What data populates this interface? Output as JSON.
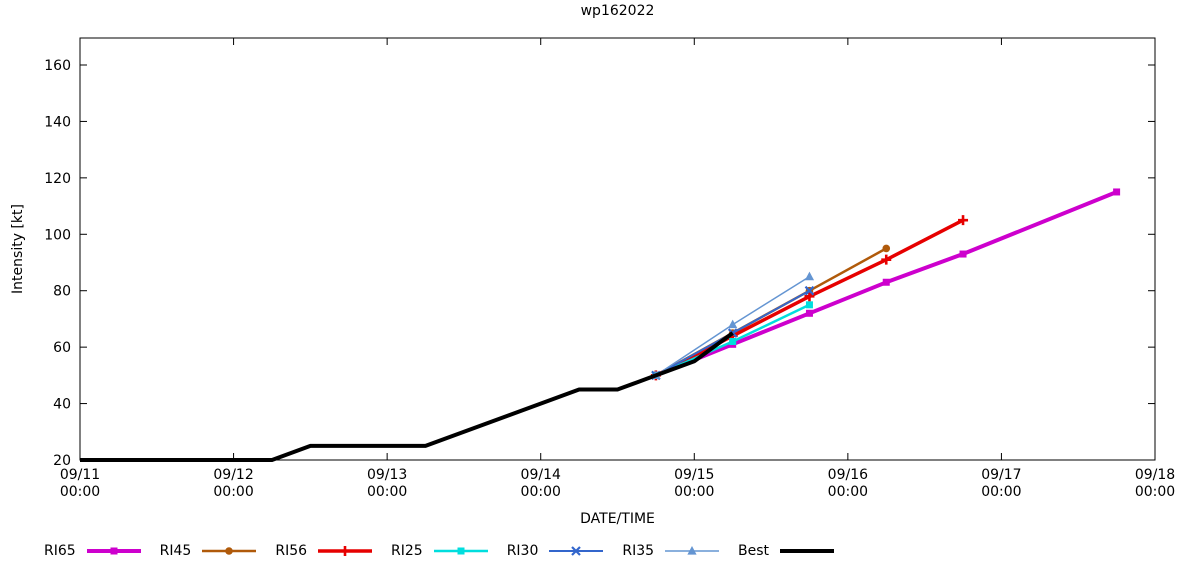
{
  "page": {
    "background": "#ffffff"
  },
  "chart_data": {
    "type": "line",
    "title": "wp162022",
    "xlabel": "DATE/TIME",
    "ylabel": "Intensity [kt]",
    "xlim_days": [
      11,
      18
    ],
    "ylim": [
      20,
      160
    ],
    "grid": false,
    "legend_position": "bottom",
    "x_ticks": [
      {
        "date": "09/11",
        "time": "00:00"
      },
      {
        "date": "09/12",
        "time": "00:00"
      },
      {
        "date": "09/13",
        "time": "00:00"
      },
      {
        "date": "09/14",
        "time": "00:00"
      },
      {
        "date": "09/15",
        "time": "00:00"
      },
      {
        "date": "09/16",
        "time": "00:00"
      },
      {
        "date": "09/17",
        "time": "00:00"
      },
      {
        "date": "09/18",
        "time": "00:00"
      }
    ],
    "y_ticks": [
      20,
      40,
      60,
      80,
      100,
      120,
      140,
      160
    ],
    "series": [
      {
        "name": "RI65",
        "color": "#cd00cd",
        "marker": "square",
        "width": 4,
        "points": [
          [
            "09/14 18:00",
            50
          ],
          [
            "09/15 06:00",
            61
          ],
          [
            "09/15 18:00",
            72
          ],
          [
            "09/16 06:00",
            83
          ],
          [
            "09/16 18:00",
            93
          ],
          [
            "09/17 18:00",
            115
          ]
        ]
      },
      {
        "name": "RI45",
        "color": "#b05a0a",
        "marker": "circle",
        "width": 2.5,
        "points": [
          [
            "09/14 18:00",
            50
          ],
          [
            "09/15 06:00",
            65
          ],
          [
            "09/15 18:00",
            80
          ],
          [
            "09/16 06:00",
            95
          ]
        ]
      },
      {
        "name": "RI56",
        "color": "#e60000",
        "marker": "plus",
        "width": 3.5,
        "points": [
          [
            "09/14 18:00",
            50
          ],
          [
            "09/15 06:00",
            64
          ],
          [
            "09/15 18:00",
            78
          ],
          [
            "09/16 06:00",
            91
          ],
          [
            "09/16 18:00",
            105
          ]
        ]
      },
      {
        "name": "RI25",
        "color": "#00dede",
        "marker": "square",
        "width": 2.5,
        "points": [
          [
            "09/14 18:00",
            50
          ],
          [
            "09/15 06:00",
            62
          ],
          [
            "09/15 18:00",
            75
          ]
        ]
      },
      {
        "name": "RI30",
        "color": "#3366cc",
        "marker": "cross",
        "width": 2,
        "points": [
          [
            "09/14 18:00",
            50
          ],
          [
            "09/15 06:00",
            65
          ],
          [
            "09/15 18:00",
            80
          ]
        ]
      },
      {
        "name": "RI35",
        "color": "#6495d2",
        "marker": "triangle",
        "width": 1.5,
        "points": [
          [
            "09/14 18:00",
            50
          ],
          [
            "09/15 06:00",
            68
          ],
          [
            "09/15 18:00",
            85
          ]
        ]
      },
      {
        "name": "Best",
        "color": "#000000",
        "marker": "none",
        "width": 4,
        "points": [
          [
            "09/11 00:00",
            20
          ],
          [
            "09/12 06:00",
            20
          ],
          [
            "09/12 12:00",
            25
          ],
          [
            "09/13 06:00",
            25
          ],
          [
            "09/14 06:00",
            45
          ],
          [
            "09/14 12:00",
            45
          ],
          [
            "09/14 18:00",
            50
          ],
          [
            "09/15 00:00",
            55
          ],
          [
            "09/15 06:00",
            65
          ]
        ]
      }
    ],
    "legend_order": [
      "RI65",
      "RI45",
      "RI56",
      "RI25",
      "RI30",
      "RI35",
      "Best"
    ]
  }
}
